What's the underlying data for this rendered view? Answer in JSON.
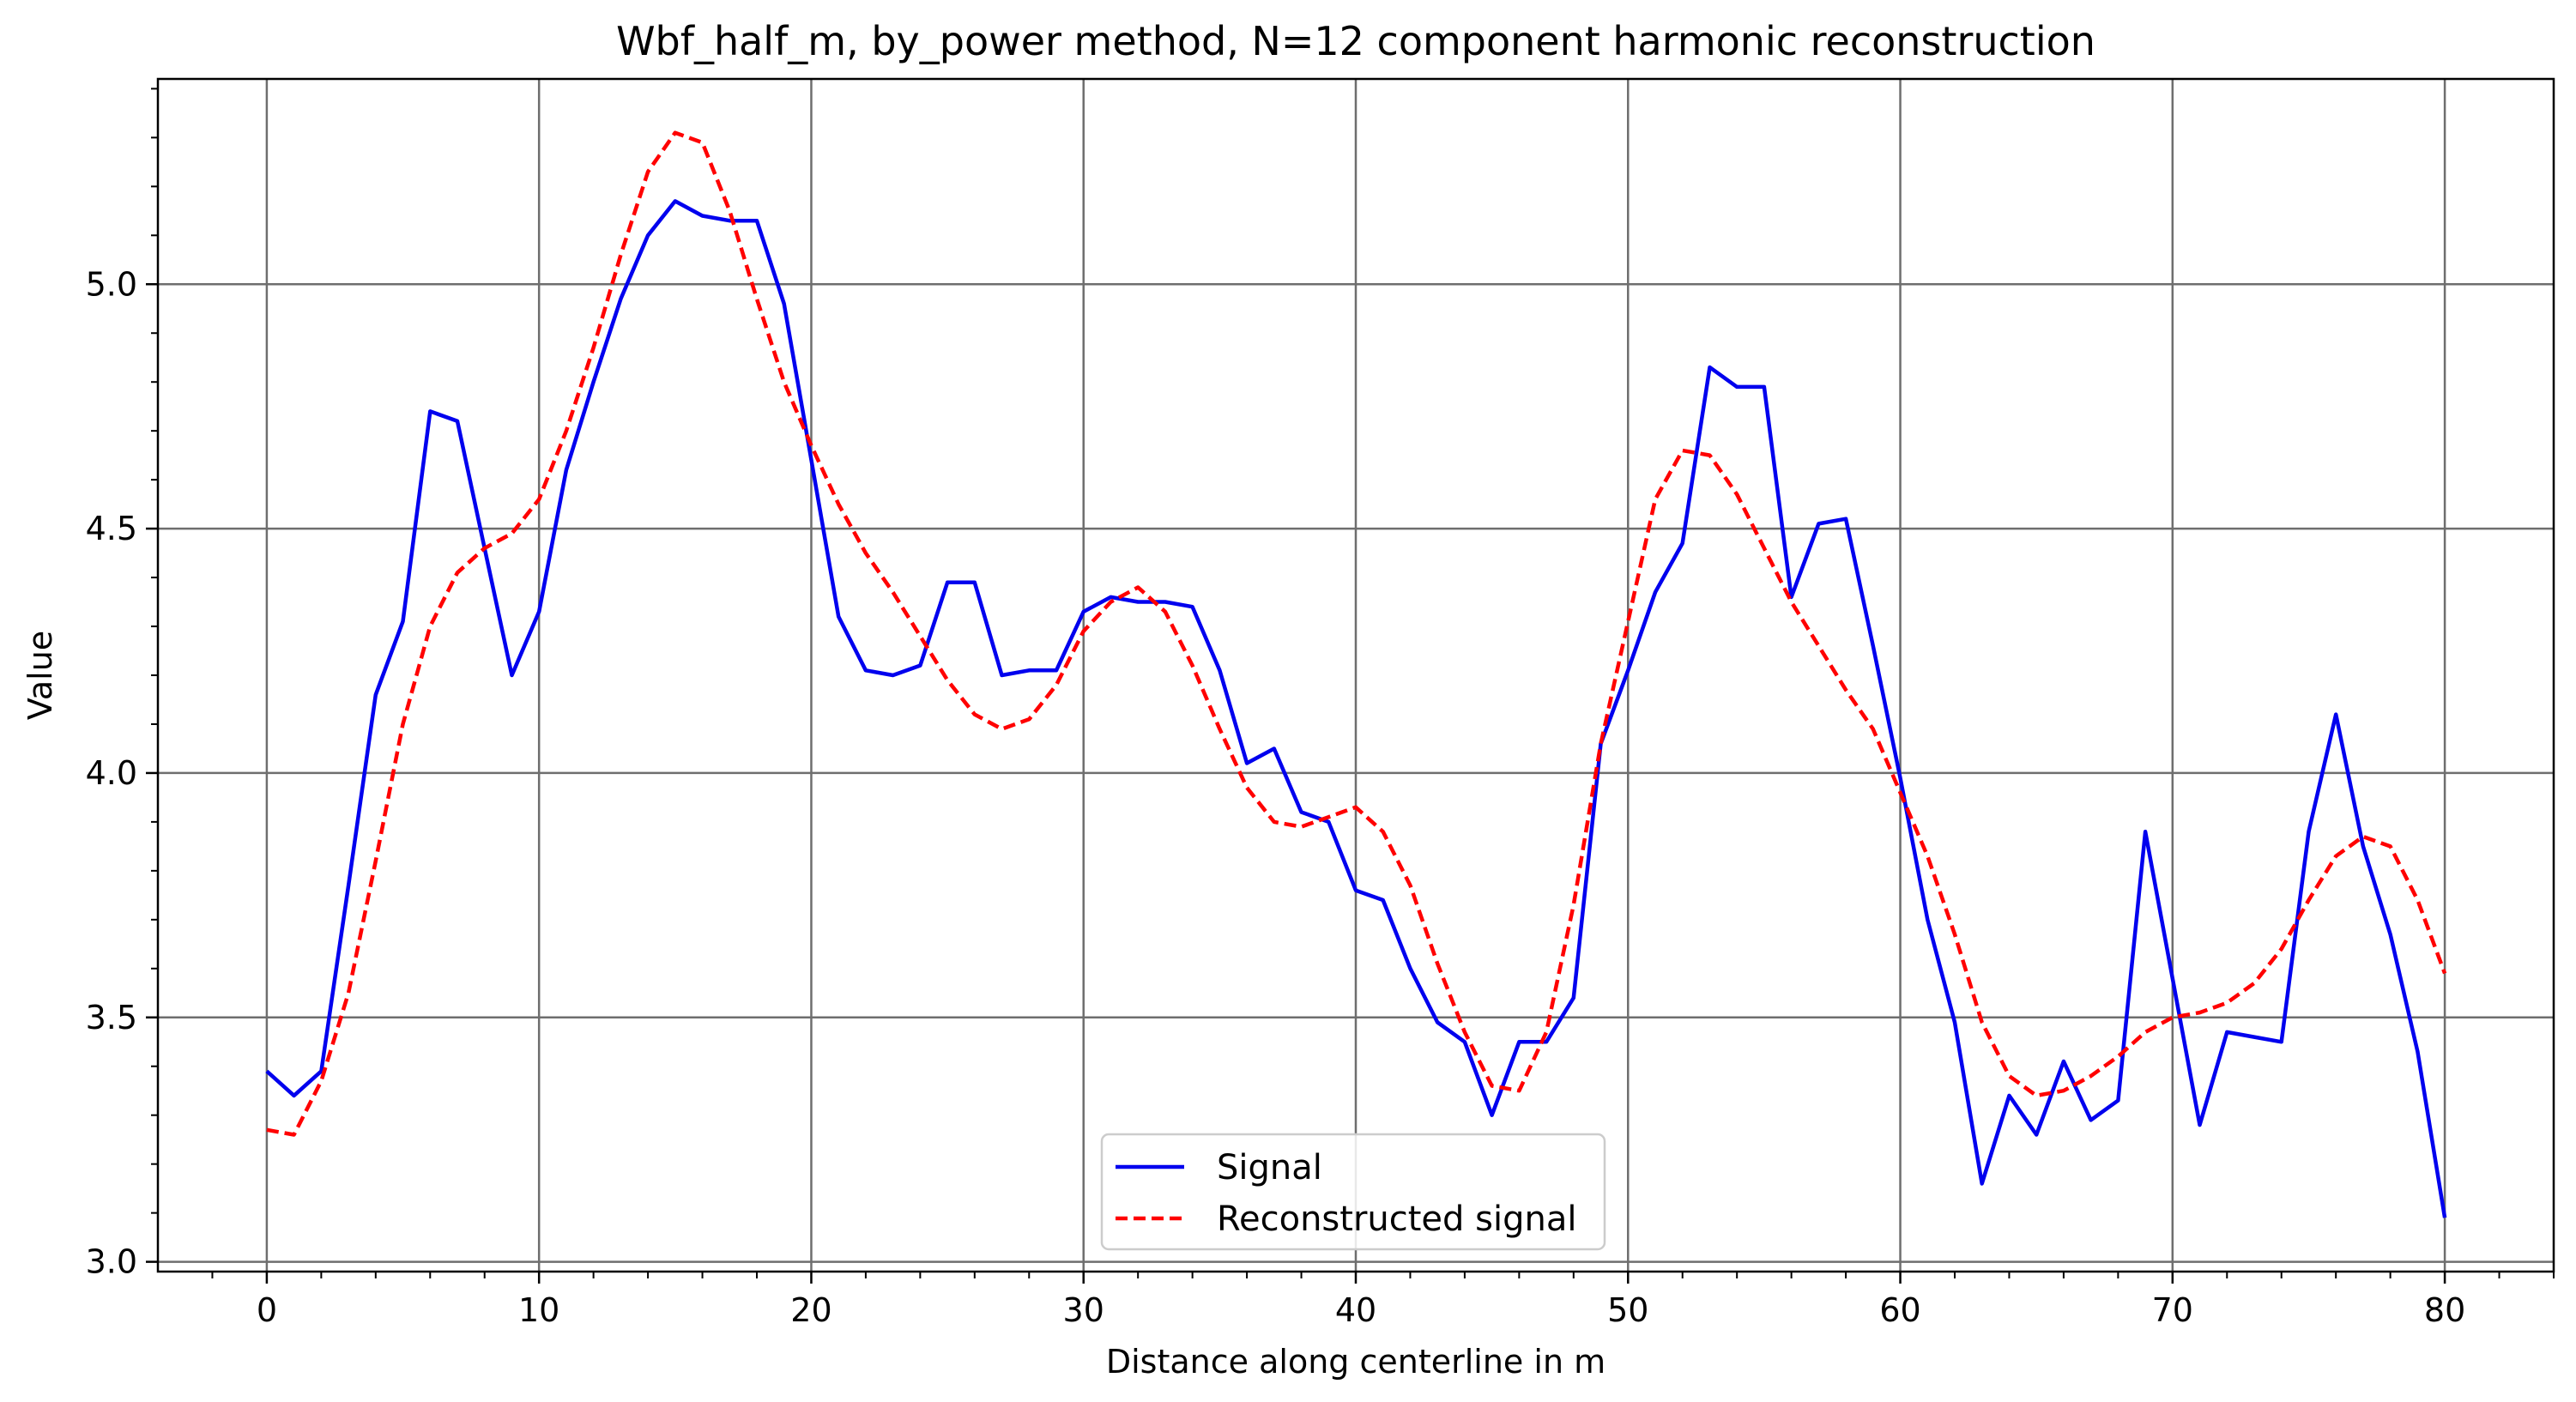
{
  "chart_data": {
    "type": "line",
    "title": "Wbf_half_m, by_power method, N=12 component harmonic reconstruction",
    "xlabel": "Distance along centerline in m",
    "ylabel": "Value",
    "xlim": [
      -4,
      84
    ],
    "ylim": [
      2.98,
      5.42
    ],
    "xticks": [
      0,
      10,
      20,
      30,
      40,
      50,
      60,
      70,
      80
    ],
    "yticks": [
      3.0,
      3.5,
      4.0,
      4.5,
      5.0
    ],
    "xtick_labels": [
      "0",
      "10",
      "20",
      "30",
      "40",
      "50",
      "60",
      "70",
      "80"
    ],
    "ytick_labels": [
      "3.0",
      "3.5",
      "4.0",
      "4.5",
      "5.0"
    ],
    "grid": true,
    "legend_position": "lower center",
    "x": [
      0,
      1,
      2,
      3,
      4,
      5,
      6,
      7,
      8,
      9,
      10,
      11,
      12,
      13,
      14,
      15,
      16,
      17,
      18,
      19,
      20,
      21,
      22,
      23,
      24,
      25,
      26,
      27,
      28,
      29,
      30,
      31,
      32,
      33,
      34,
      35,
      36,
      37,
      38,
      39,
      40,
      41,
      42,
      43,
      44,
      45,
      46,
      47,
      48,
      49,
      50,
      51,
      52,
      53,
      54,
      55,
      56,
      57,
      58,
      59,
      60,
      61,
      62,
      63,
      64,
      65,
      66,
      67,
      68,
      69,
      70,
      71,
      72,
      73,
      74,
      75,
      76,
      77,
      78,
      79,
      80
    ],
    "series": [
      {
        "name": "Signal",
        "color": "#0000ee",
        "dash": "solid",
        "values": [
          3.39,
          3.34,
          3.39,
          3.77,
          4.16,
          4.31,
          4.74,
          4.72,
          4.46,
          4.2,
          4.33,
          4.62,
          4.8,
          4.97,
          5.1,
          5.17,
          5.14,
          5.13,
          5.13,
          4.96,
          4.64,
          4.32,
          4.21,
          4.2,
          4.22,
          4.39,
          4.39,
          4.2,
          4.21,
          4.21,
          4.33,
          4.36,
          4.35,
          4.35,
          4.34,
          4.21,
          4.02,
          4.05,
          3.92,
          3.9,
          3.76,
          3.74,
          3.6,
          3.49,
          3.45,
          3.3,
          3.45,
          3.45,
          3.54,
          4.06,
          4.21,
          4.37,
          4.47,
          4.83,
          4.79,
          4.79,
          4.36,
          4.51,
          4.52,
          4.26,
          3.99,
          3.7,
          3.49,
          3.16,
          3.34,
          3.26,
          3.41,
          3.29,
          3.33,
          3.88,
          3.58,
          3.28,
          3.47,
          3.46,
          3.45,
          3.88,
          4.12,
          3.85,
          3.67,
          3.43,
          3.09
        ]
      },
      {
        "name": "Reconstructed signal",
        "color": "#ff0000",
        "dash": "dashed",
        "values": [
          3.27,
          3.26,
          3.37,
          3.55,
          3.82,
          4.1,
          4.3,
          4.41,
          4.46,
          4.49,
          4.56,
          4.7,
          4.87,
          5.06,
          5.23,
          5.31,
          5.29,
          5.15,
          4.97,
          4.8,
          4.67,
          4.55,
          4.45,
          4.37,
          4.28,
          4.19,
          4.12,
          4.09,
          4.11,
          4.18,
          4.29,
          4.35,
          4.38,
          4.33,
          4.22,
          4.09,
          3.97,
          3.9,
          3.89,
          3.91,
          3.93,
          3.88,
          3.77,
          3.61,
          3.47,
          3.36,
          3.35,
          3.47,
          3.73,
          4.06,
          4.31,
          4.56,
          4.66,
          4.65,
          4.57,
          4.46,
          4.35,
          4.26,
          4.17,
          4.09,
          3.96,
          3.83,
          3.67,
          3.49,
          3.38,
          3.34,
          3.35,
          3.38,
          3.42,
          3.47,
          3.5,
          3.51,
          3.53,
          3.57,
          3.64,
          3.74,
          3.83,
          3.87,
          3.85,
          3.74,
          3.59
        ]
      }
    ]
  }
}
